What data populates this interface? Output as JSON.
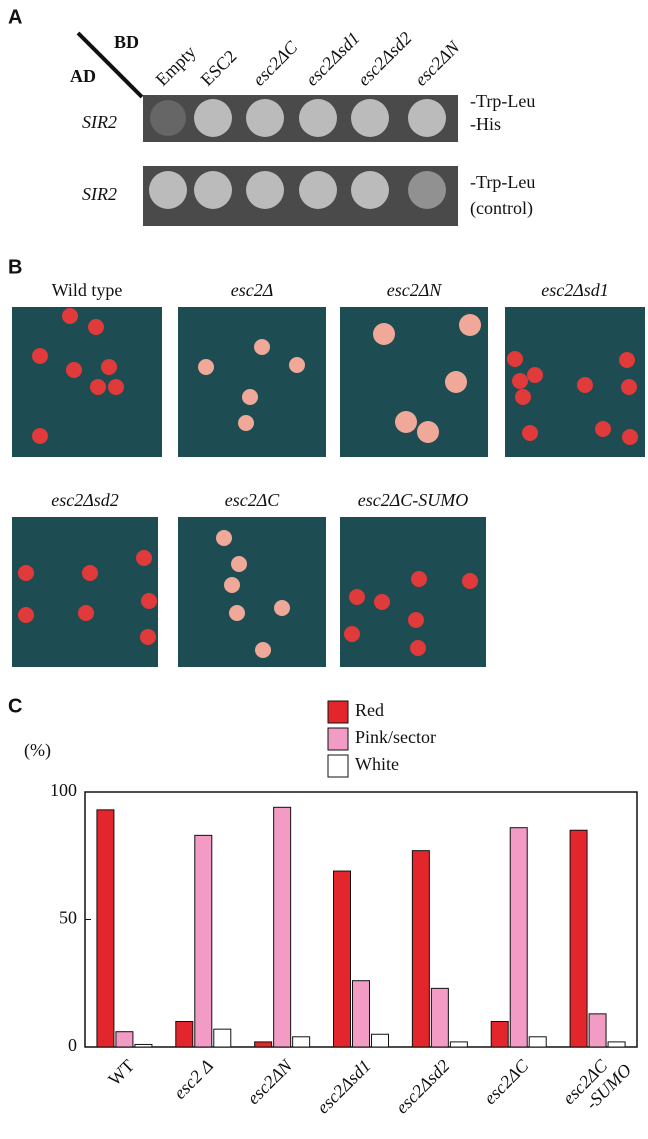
{
  "panel_a": {
    "label": "A",
    "ad": "AD",
    "bd": "BD",
    "columns": [
      "Empty",
      "ESC2",
      "esc2ΔC",
      "esc2Δsd1",
      "esc2Δsd2",
      "esc2ΔN"
    ],
    "rows": [
      {
        "label": "SIR2",
        "conditions": [
          "-Trp-Leu",
          "-His"
        ]
      },
      {
        "label": "SIR2",
        "conditions": [
          "-Trp-Leu",
          "(control)"
        ]
      }
    ]
  },
  "panel_b": {
    "label": "B",
    "plates": [
      {
        "label": "Wild type"
      },
      {
        "label": "esc2Δ"
      },
      {
        "label": "esc2ΔN"
      },
      {
        "label": "esc2Δsd1"
      },
      {
        "label": "esc2Δsd2"
      },
      {
        "label": "esc2ΔC"
      },
      {
        "label": "esc2ΔC-SUMO"
      }
    ]
  },
  "panel_c": {
    "label": "C"
  },
  "chart_data": {
    "type": "bar",
    "y_label": "(%)",
    "categories": [
      "WT",
      "esc2 Δ",
      "esc2ΔN",
      "esc2Δsd1",
      "esc2Δsd2",
      "esc2ΔC",
      "esc2ΔC\n-SUMO"
    ],
    "series": [
      {
        "name": "Red",
        "color": "#e3262b",
        "values": [
          93,
          10,
          2,
          69,
          77,
          10,
          85
        ]
      },
      {
        "name": "Pink/sector",
        "color": "#f29bc4",
        "values": [
          6,
          83,
          94,
          26,
          23,
          86,
          13
        ]
      },
      {
        "name": "White",
        "color": "#ffffff",
        "values": [
          1,
          7,
          4,
          5,
          2,
          4,
          2
        ]
      }
    ],
    "ylim": [
      0,
      100
    ],
    "yticks": [
      0,
      50,
      100
    ]
  }
}
